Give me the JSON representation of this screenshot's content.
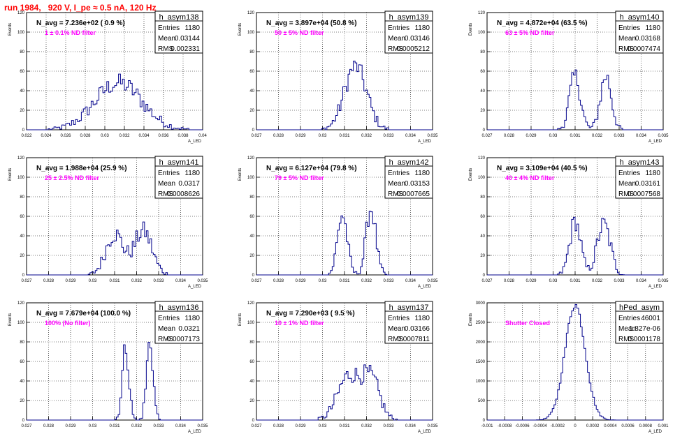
{
  "page_title": "run 1984,   920 V, I_pe ≈ 0.5 nA, 120 Hz",
  "colors": {
    "hist": "#00008b",
    "annotation": "#ff00ff",
    "title": "#ff0000",
    "grid": "#000000"
  },
  "stats_labels": {
    "entries": "Entries",
    "mean": "Mean",
    "rms": "RMS"
  },
  "y_axis_label": "Events",
  "x_axis_label": "A_LED",
  "chart_data": [
    {
      "type": "bar",
      "name": "h_asym138",
      "header": "N_avg = 7.236e+02 ( 0.9 %)",
      "annotation": "1 ± 0.1% ND filter",
      "stats": {
        "entries": "1180",
        "mean": "0.03144",
        "rms": "0.002331"
      },
      "xlim": [
        0.022,
        0.04
      ],
      "ylim": [
        0,
        120
      ],
      "xticks": [
        "0.022",
        "0.024",
        "0.026",
        "0.028",
        "0.03",
        "0.032",
        "0.034",
        "0.036",
        "0.038",
        "0.04"
      ],
      "yticks": [
        "0",
        "20",
        "40",
        "60",
        "80",
        "100",
        "120"
      ],
      "shape": {
        "peaks": [
          [
            0.0314,
            0.0024,
            48
          ]
        ]
      },
      "bins": 90
    },
    {
      "type": "bar",
      "name": "h_asym139",
      "header": "N_avg = 3.897e+04 (50.8 %)",
      "annotation": "50 ± 5% ND filter",
      "stats": {
        "entries": "1180",
        "mean": "0.03146",
        "rms": "0.0005212"
      },
      "xlim": [
        0.027,
        0.035
      ],
      "ylim": [
        0,
        120
      ],
      "xticks": [
        "0.027",
        "0.028",
        "0.029",
        "0.03",
        "0.031",
        "0.032",
        "0.033",
        "0.034",
        "0.035"
      ],
      "yticks": [
        "0",
        "20",
        "40",
        "60",
        "80",
        "100",
        "120"
      ],
      "shape": {
        "peaks": [
          [
            0.0315,
            0.0005,
            65
          ]
        ]
      },
      "bins": 100
    },
    {
      "type": "bar",
      "name": "h_asym140",
      "header": "N_avg = 4.872e+04 (63.5 %)",
      "annotation": "63 ± 5% ND filter",
      "stats": {
        "entries": "1180",
        "mean": "0.03168",
        "rms": "0.0007474"
      },
      "xlim": [
        0.027,
        0.035
      ],
      "ylim": [
        0,
        120
      ],
      "xticks": [
        "0.027",
        "0.028",
        "0.029",
        "0.03",
        "0.031",
        "0.032",
        "0.033",
        "0.034",
        "0.035"
      ],
      "yticks": [
        "0",
        "20",
        "40",
        "60",
        "80",
        "100",
        "120"
      ],
      "shape": {
        "peaks": [
          [
            0.031,
            0.00025,
            55
          ],
          [
            0.0324,
            0.00025,
            55
          ]
        ]
      },
      "bins": 100
    },
    {
      "type": "bar",
      "name": "h_asym141",
      "header": "N_avg = 1.988e+04 (25.9 %)",
      "annotation": "25 ± 2.5% ND filter",
      "stats": {
        "entries": "1180",
        "mean": "0.0317",
        "rms": "0.0008626"
      },
      "xlim": [
        0.027,
        0.035
      ],
      "ylim": [
        0,
        120
      ],
      "xticks": [
        "0.027",
        "0.028",
        "0.029",
        "0.03",
        "0.031",
        "0.032",
        "0.033",
        "0.034",
        "0.035"
      ],
      "yticks": [
        "0",
        "20",
        "40",
        "60",
        "80",
        "100",
        "120"
      ],
      "shape": {
        "peaks": [
          [
            0.031,
            0.0004,
            42
          ],
          [
            0.0323,
            0.0004,
            45
          ]
        ]
      },
      "bins": 100
    },
    {
      "type": "bar",
      "name": "h_asym142",
      "header": "N_avg = 6.127e+04 (79.8 %)",
      "annotation": "79 ± 5% ND filter",
      "stats": {
        "entries": "1180",
        "mean": "0.03153",
        "rms": "0.0007665"
      },
      "xlim": [
        0.027,
        0.035
      ],
      "ylim": [
        0,
        120
      ],
      "xticks": [
        "0.027",
        "0.028",
        "0.029",
        "0.03",
        "0.031",
        "0.032",
        "0.033",
        "0.034",
        "0.035"
      ],
      "yticks": [
        "0",
        "20",
        "40",
        "60",
        "80",
        "100",
        "120"
      ],
      "shape": {
        "peaks": [
          [
            0.0309,
            0.00022,
            62
          ],
          [
            0.0322,
            0.00022,
            68
          ]
        ]
      },
      "bins": 100
    },
    {
      "type": "bar",
      "name": "h_asym143",
      "header": "N_avg = 3.109e+04 (40.5 %)",
      "annotation": "40 ± 4% ND filter",
      "stats": {
        "entries": "1180",
        "mean": "0.03161",
        "rms": "0.0007568"
      },
      "xlim": [
        0.027,
        0.035
      ],
      "ylim": [
        0,
        120
      ],
      "xticks": [
        "0.027",
        "0.028",
        "0.029",
        "0.03",
        "0.031",
        "0.032",
        "0.033",
        "0.034",
        "0.035"
      ],
      "yticks": [
        "0",
        "20",
        "40",
        "60",
        "80",
        "100",
        "120"
      ],
      "shape": {
        "peaks": [
          [
            0.031,
            0.00025,
            55
          ],
          [
            0.0323,
            0.0003,
            52
          ]
        ]
      },
      "bins": 100
    },
    {
      "type": "bar",
      "name": "h_asym136",
      "header": "N_avg = 7.679e+04 (100.0 %)",
      "annotation": "100% (No filter)",
      "stats": {
        "entries": "1180",
        "mean": "0.0321",
        "rms": "0.0007173"
      },
      "xlim": [
        0.027,
        0.035
      ],
      "ylim": [
        0,
        120
      ],
      "xticks": [
        "0.027",
        "0.028",
        "0.029",
        "0.03",
        "0.031",
        "0.032",
        "0.033",
        "0.034",
        "0.035"
      ],
      "yticks": [
        "0",
        "20",
        "40",
        "60",
        "80",
        "100",
        "120"
      ],
      "shape": {
        "peaks": [
          [
            0.0315,
            0.00015,
            75
          ],
          [
            0.0326,
            0.00015,
            80
          ]
        ]
      },
      "bins": 100
    },
    {
      "type": "bar",
      "name": "h_asym137",
      "header": "N_avg = 7.290e+03 ( 9.5 %)",
      "annotation": "10 ± 1% ND filter",
      "stats": {
        "entries": "1180",
        "mean": "0.03166",
        "rms": "0.0007811"
      },
      "xlim": [
        0.027,
        0.035
      ],
      "ylim": [
        0,
        120
      ],
      "xticks": [
        "0.027",
        "0.028",
        "0.029",
        "0.03",
        "0.031",
        "0.032",
        "0.033",
        "0.034",
        "0.035"
      ],
      "yticks": [
        "0",
        "20",
        "40",
        "60",
        "80",
        "100",
        "120"
      ],
      "shape": {
        "peaks": [
          [
            0.0312,
            0.0005,
            45
          ],
          [
            0.0322,
            0.0004,
            40
          ]
        ]
      },
      "bins": 100
    },
    {
      "type": "bar",
      "name": "hPed_asym",
      "header": "",
      "annotation": "Shutter Closed",
      "stats": {
        "entries": "46001",
        "mean": "1.827e-06",
        "rms": "0.0001178"
      },
      "xlim": [
        -0.001,
        0.001
      ],
      "ylim": [
        0,
        3000
      ],
      "xticks": [
        "-0.001",
        "-0.0008",
        "-0.0006",
        "-0.0004",
        "-0.0002",
        "0",
        "0.0002",
        "0.0004",
        "0.0006",
        "0.0008",
        "0.001"
      ],
      "yticks": [
        "0",
        "500",
        "1000",
        "1500",
        "2000",
        "2500",
        "3000"
      ],
      "shape": {
        "peaks": [
          [
            0.0,
            0.000115,
            2950
          ]
        ]
      },
      "bins": 100
    }
  ]
}
